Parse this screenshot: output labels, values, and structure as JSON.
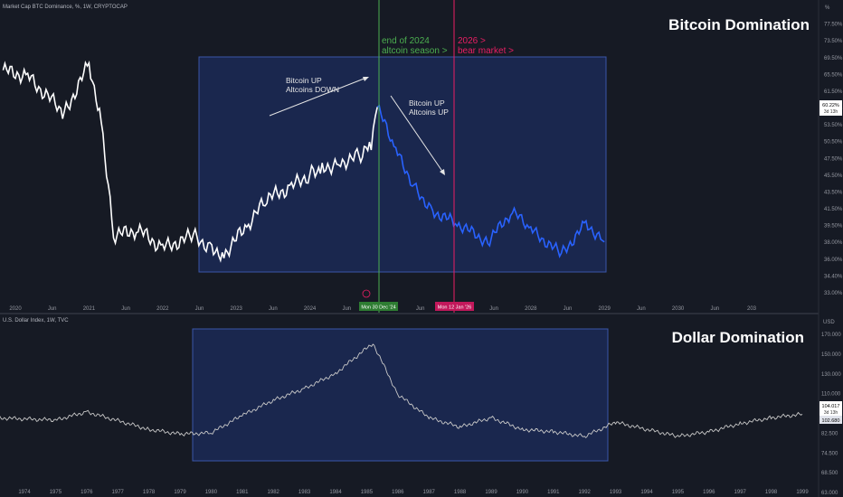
{
  "top_panel": {
    "header": "Market Cap BTC Dominance, %, 1W, CRYPTOCAP",
    "title": "Bitcoin Domination",
    "unit_label": "%",
    "price_tag": {
      "value": "60.22%",
      "countdown": "3d 13h"
    },
    "vline_green": {
      "label_line1": "end of 2024",
      "label_line2": "altcoin season >",
      "axis_label": "Mon 30 Dec '24",
      "color": "#4caf50"
    },
    "vline_red": {
      "label_line1": "2026 >",
      "label_line2": "bear market >",
      "axis_label": "Mon 12 Jan '26",
      "color": "#e91e63"
    },
    "annotation_up": {
      "line1": "Bitcoin UP",
      "line2": "Altcoins DOWN"
    },
    "annotation_down": {
      "line1": "Bitcoin UP",
      "line2": "Altcoins UP"
    },
    "x_ticks": [
      "2020",
      "Jun",
      "2021",
      "Jun",
      "2022",
      "Jun",
      "2023",
      "Jun",
      "2024",
      "Jun",
      "Jun",
      "2027",
      "Jun",
      "2028",
      "Jun",
      "2029",
      "Jun",
      "2030",
      "Jun",
      "203"
    ],
    "y_ticks": [
      "77.50%",
      "73.50%",
      "69.50%",
      "65.50%",
      "61.50%",
      "57.50%",
      "53.50%",
      "50.50%",
      "47.50%",
      "45.50%",
      "43.50%",
      "41.50%",
      "39.50%",
      "38.00%",
      "36.00%",
      "34.40%",
      "33.00%"
    ]
  },
  "bottom_panel": {
    "header": "U.S. Dollar Index, 1W, TVC",
    "title": "Dollar Domination",
    "unit_label": "USD",
    "price_tag": {
      "value": "104.017",
      "countdown": "3d 13h",
      "value2": "102.680"
    },
    "x_ticks": [
      "1974",
      "1975",
      "1976",
      "1977",
      "1978",
      "1979",
      "1980",
      "1981",
      "1982",
      "1983",
      "1984",
      "1985",
      "1986",
      "1987",
      "1988",
      "1989",
      "1990",
      "1991",
      "1992",
      "1993",
      "1994",
      "1995",
      "1996",
      "1997",
      "1998",
      "1999"
    ],
    "y_ticks": [
      "170.000",
      "150.000",
      "130.000",
      "110.000",
      "96.000",
      "82.500",
      "74.500",
      "68.500",
      "63.000"
    ]
  },
  "colors": {
    "background": "#161a24",
    "box_fill": "#1c2c5c",
    "box_stroke": "#3a55a8",
    "white_series": "#ffffff",
    "blue_series": "#2962ff",
    "dxy_series": "#c8c8c8"
  },
  "chart_data": [
    {
      "type": "line",
      "title": "Bitcoin Domination",
      "ylabel": "%",
      "series": [
        {
          "x": [
            "2019-11",
            "2020-03",
            "2020-09",
            "2021-01",
            "2021-03",
            "2021-05",
            "2021-09",
            "2022-01",
            "2022-06",
            "2022-09",
            "2022-11",
            "2023-03",
            "2023-06",
            "2023-10",
            "2024-01",
            "2024-03",
            "2024-06",
            "2024-09",
            "2024-11",
            "2024-12"
          ],
          "values": [
            69,
            68,
            62,
            70,
            61,
            42,
            43,
            40,
            42,
            40,
            39,
            44,
            48,
            50,
            52,
            53,
            54,
            55,
            57,
            63
          ]
        },
        {
          "x": [
            "2024-12",
            "2025-03",
            "2025-06",
            "2025-09",
            "2026-01",
            "2026-06",
            "2026-10",
            "2027-01",
            "2027-06",
            "2027-10",
            "2028-01"
          ],
          "values": [
            63,
            56,
            50,
            46,
            44,
            41,
            46,
            43,
            39,
            44,
            41
          ]
        }
      ],
      "ylim": [
        33,
        77.5
      ]
    },
    {
      "type": "line",
      "title": "Dollar Domination",
      "ylabel": "USD",
      "series": [
        {
          "x": [
            "1973",
            "1975",
            "1976",
            "1978",
            "1979",
            "1980",
            "1981",
            "1982",
            "1983",
            "1984",
            "1985.2",
            "1986",
            "1987",
            "1988",
            "1989",
            "1990",
            "1991",
            "1992",
            "1993",
            "1995",
            "1996",
            "1997",
            "1998",
            "1999"
          ],
          "values": [
            100,
            98,
            105,
            90,
            86,
            87,
            102,
            115,
            125,
            138,
            164,
            120,
            100,
            92,
            100,
            90,
            88,
            84,
            96,
            84,
            88,
            95,
            100,
            103
          ]
        }
      ],
      "ylim": [
        63,
        170
      ]
    }
  ]
}
